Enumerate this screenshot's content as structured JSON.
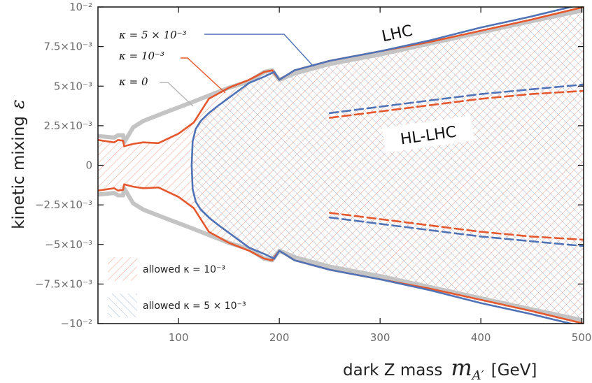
{
  "chart_data": {
    "type": "line",
    "title": "",
    "xlabel": "dark Z mass",
    "xlabel_symbol": "m",
    "xlabel_subscript": "A′",
    "xlabel_unit": "[GeV]",
    "ylabel": "kinetic mixing",
    "ylabel_symbol": "ε",
    "xlim": [
      20,
      502
    ],
    "ylim": [
      -0.01,
      0.01
    ],
    "xticks": [
      100,
      200,
      300,
      400,
      500
    ],
    "yticks": [
      {
        "value": 0.01,
        "label": "10⁻²"
      },
      {
        "value": 0.0075,
        "label": "7.5×10⁻³"
      },
      {
        "value": 0.005,
        "label": "5×10⁻³"
      },
      {
        "value": 0.0025,
        "label": "2.5×10⁻³"
      },
      {
        "value": 0,
        "label": "0"
      },
      {
        "value": -0.0025,
        "label": "−2.5×10⁻³"
      },
      {
        "value": -0.005,
        "label": "−5×10⁻³"
      },
      {
        "value": -0.0075,
        "label": "−7.5×10⁻³"
      },
      {
        "value": -0.01,
        "label": "−10⁻²"
      }
    ],
    "grid": false,
    "colors": {
      "kappa0": "#c4c4c4",
      "kappa1e3": "#e5582e",
      "kappa5e3": "#4f73b6"
    },
    "series": [
      {
        "name": "κ = 0",
        "color": "#c4c4c4",
        "style": "solid-thick",
        "x": [
          20,
          36,
          40,
          45,
          46,
          55,
          65,
          85,
          110,
          130,
          150,
          170,
          185,
          193,
          195,
          200,
          215,
          250,
          300,
          350,
          400,
          450,
          502
        ],
        "y": [
          0.00185,
          0.00175,
          0.0019,
          0.0019,
          0.00145,
          0.0024,
          0.0028,
          0.0033,
          0.0039,
          0.0044,
          0.0049,
          0.0053,
          0.0059,
          0.006,
          0.0058,
          0.0054,
          0.0058,
          0.0064,
          0.007,
          0.0077,
          0.0084,
          0.0091,
          0.0098
        ]
      },
      {
        "name": "κ = 10⁻³",
        "color": "#e5582e",
        "style": "solid",
        "x": [
          20,
          36,
          40,
          45,
          46,
          55,
          65,
          80,
          100,
          115,
          130,
          150,
          170,
          185,
          193,
          195,
          200,
          215,
          250,
          300,
          350,
          400,
          450,
          502
        ],
        "y": [
          0.0016,
          0.00145,
          0.0016,
          0.00155,
          0.0012,
          0.00135,
          0.00145,
          0.0014,
          0.002,
          0.0027,
          0.0042,
          0.0049,
          0.0054,
          0.0059,
          0.006,
          0.0058,
          0.0054,
          0.006,
          0.0066,
          0.0072,
          0.0078,
          0.0085,
          0.0092,
          0.01
        ]
      },
      {
        "name": "κ = 5×10⁻³",
        "color": "#4f73b6",
        "style": "solid",
        "x": [
          113,
          114,
          117,
          122,
          130,
          140,
          155,
          170,
          185,
          195,
          198,
          200,
          215,
          250,
          300,
          350,
          400,
          450,
          502
        ],
        "y": [
          0.0,
          0.0015,
          0.0023,
          0.0028,
          0.0033,
          0.0038,
          0.0045,
          0.0052,
          0.0056,
          0.0059,
          0.0056,
          0.0054,
          0.006,
          0.0066,
          0.0072,
          0.0079,
          0.0087,
          0.0094,
          0.0102
        ]
      },
      {
        "name": "HL-LHC κ = 5×10⁻³",
        "color": "#4f73b6",
        "style": "dashed",
        "x": [
          250,
          300,
          350,
          400,
          450,
          502
        ],
        "y": [
          0.0033,
          0.0037,
          0.0041,
          0.0045,
          0.0048,
          0.0051
        ]
      },
      {
        "name": "HL-LHC κ = 10⁻³",
        "color": "#e5582e",
        "style": "dashed",
        "x": [
          250,
          300,
          350,
          400,
          450,
          502
        ],
        "y": [
          0.003,
          0.0034,
          0.0038,
          0.0042,
          0.0045,
          0.0047
        ]
      }
    ],
    "annotations": {
      "k5": "κ = 5 × 10⁻³",
      "k1": "κ = 10⁻³",
      "k0": "κ = 0",
      "lhc": "LHC",
      "hllhc": "HL-LHC"
    },
    "legend": {
      "placement": "bottom-left",
      "entries": [
        {
          "label": "allowed κ = 10⁻³",
          "color": "#e5582e",
          "hatch": "//"
        },
        {
          "label": "allowed κ = 5 × 10⁻³",
          "color": "#4f73b6",
          "hatch": "\\\\"
        }
      ]
    }
  }
}
